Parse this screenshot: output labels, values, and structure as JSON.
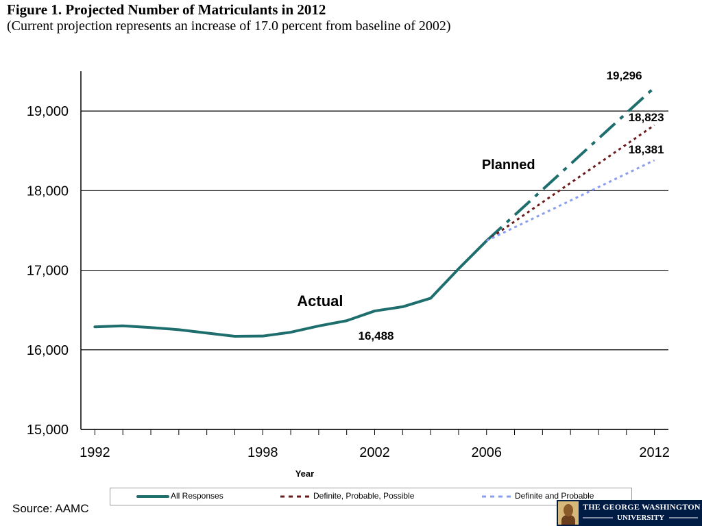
{
  "figure": {
    "title": "Figure 1. Projected Number of Matriculants in 2012",
    "subtitle": "(Current projection represents an increase of 17.0 percent from baseline of 2002)"
  },
  "chart_data": {
    "type": "line",
    "xlabel": "Year",
    "ylabel": "",
    "xlim": [
      1991.5,
      2012.5
    ],
    "ylim": [
      15000,
      19500
    ],
    "x_tick_labels": [
      "1992",
      "1998",
      "2002",
      "2006",
      "2012"
    ],
    "y_tick_labels": [
      "15,000",
      "16,000",
      "17,000",
      "18,000",
      "19,000"
    ],
    "y_ticks": [
      15000,
      16000,
      17000,
      18000,
      19000
    ],
    "grid": "horizontal",
    "legend_position": "bottom",
    "series": [
      {
        "name": "All Responses",
        "color": "#1f6e6e",
        "style": "solid",
        "x": [
          1992,
          1993,
          1994,
          1995,
          1996,
          1997,
          1998,
          1999,
          2000,
          2001,
          2002,
          2003,
          2004,
          2005,
          2006
        ],
        "y": [
          16289,
          16301,
          16280,
          16253,
          16211,
          16170,
          16173,
          16221,
          16300,
          16366,
          16488,
          16541,
          16648,
          17018,
          17370
        ]
      },
      {
        "name": "All Responses",
        "color": "#1f6e6e",
        "style": "dashdot",
        "legend": false,
        "x": [
          2006,
          2012
        ],
        "y": [
          17370,
          19296
        ]
      },
      {
        "name": "Definite, Probable, Possible",
        "color": "#6b1a1a",
        "style": "dotted",
        "x": [
          2006,
          2012
        ],
        "y": [
          17370,
          18823
        ]
      },
      {
        "name": "Definite and Probable",
        "color": "#8a9ef0",
        "style": "dotted",
        "x": [
          2006,
          2012
        ],
        "y": [
          17370,
          18381
        ]
      }
    ],
    "annotations": [
      {
        "text": "19,296",
        "x": 2012,
        "y": 19296
      },
      {
        "text": "18,823",
        "x": 2012,
        "y": 18823
      },
      {
        "text": "18,381",
        "x": 2012,
        "y": 18381
      },
      {
        "text": "16,488",
        "x": 2002,
        "y": 16488
      },
      {
        "text": "Actual",
        "x": 2000.5,
        "y": 16600
      },
      {
        "text": "Planned",
        "x": 2007.5,
        "y": 18300
      }
    ]
  },
  "legend": {
    "items": [
      {
        "label": "All Responses",
        "color": "#1f6e6e",
        "style": "solid"
      },
      {
        "label": "Definite, Probable, Possible",
        "color": "#6b1a1a",
        "style": "dotted"
      },
      {
        "label": "Definite and Probable",
        "color": "#8a9ef0",
        "style": "dotted"
      }
    ]
  },
  "source": "Source: AAMC",
  "logo": {
    "line1": "THE GEORGE WASHINGTON",
    "line2": "UNIVERSITY"
  }
}
